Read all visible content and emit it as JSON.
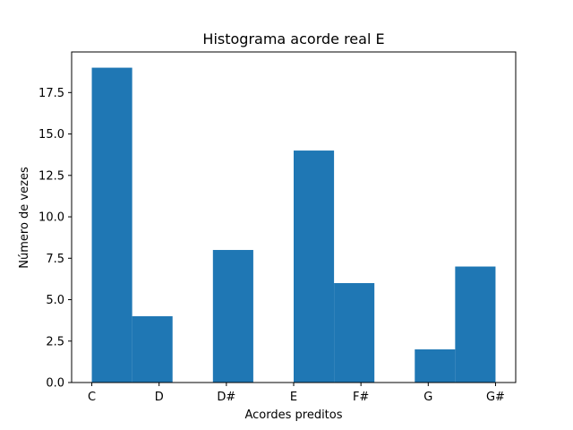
{
  "chart_data": {
    "type": "bar",
    "title": "Histograma acorde real E",
    "xlabel": "Acordes preditos",
    "ylabel": "Número de vezes",
    "x_tick_labels": [
      "C",
      "D",
      "D#",
      "E",
      "F#",
      "G",
      "G#"
    ],
    "y_tick_labels": [
      "0.0",
      "2.5",
      "5.0",
      "7.5",
      "10.0",
      "12.5",
      "15.0",
      "17.5"
    ],
    "x_tick_values": [
      0,
      1,
      2,
      3,
      4,
      5,
      6
    ],
    "y_tick_values": [
      0,
      2.5,
      5,
      7.5,
      10,
      12.5,
      15,
      17.5
    ],
    "bins": [
      {
        "start": 0.0,
        "end": 0.6,
        "value": 19
      },
      {
        "start": 0.6,
        "end": 1.2,
        "value": 4
      },
      {
        "start": 1.2,
        "end": 1.8,
        "value": 0
      },
      {
        "start": 1.8,
        "end": 2.4,
        "value": 8
      },
      {
        "start": 2.4,
        "end": 3.0,
        "value": 0
      },
      {
        "start": 3.0,
        "end": 3.6,
        "value": 14
      },
      {
        "start": 3.6,
        "end": 4.2,
        "value": 6
      },
      {
        "start": 4.2,
        "end": 4.8,
        "value": 0
      },
      {
        "start": 4.8,
        "end": 5.4,
        "value": 2
      },
      {
        "start": 5.4,
        "end": 6.0,
        "value": 7
      }
    ],
    "xlim": [
      -0.3,
      6.3
    ],
    "ylim": [
      0,
      19.95
    ],
    "bar_color": "#1f77b4",
    "grid": false,
    "legend": "none"
  }
}
